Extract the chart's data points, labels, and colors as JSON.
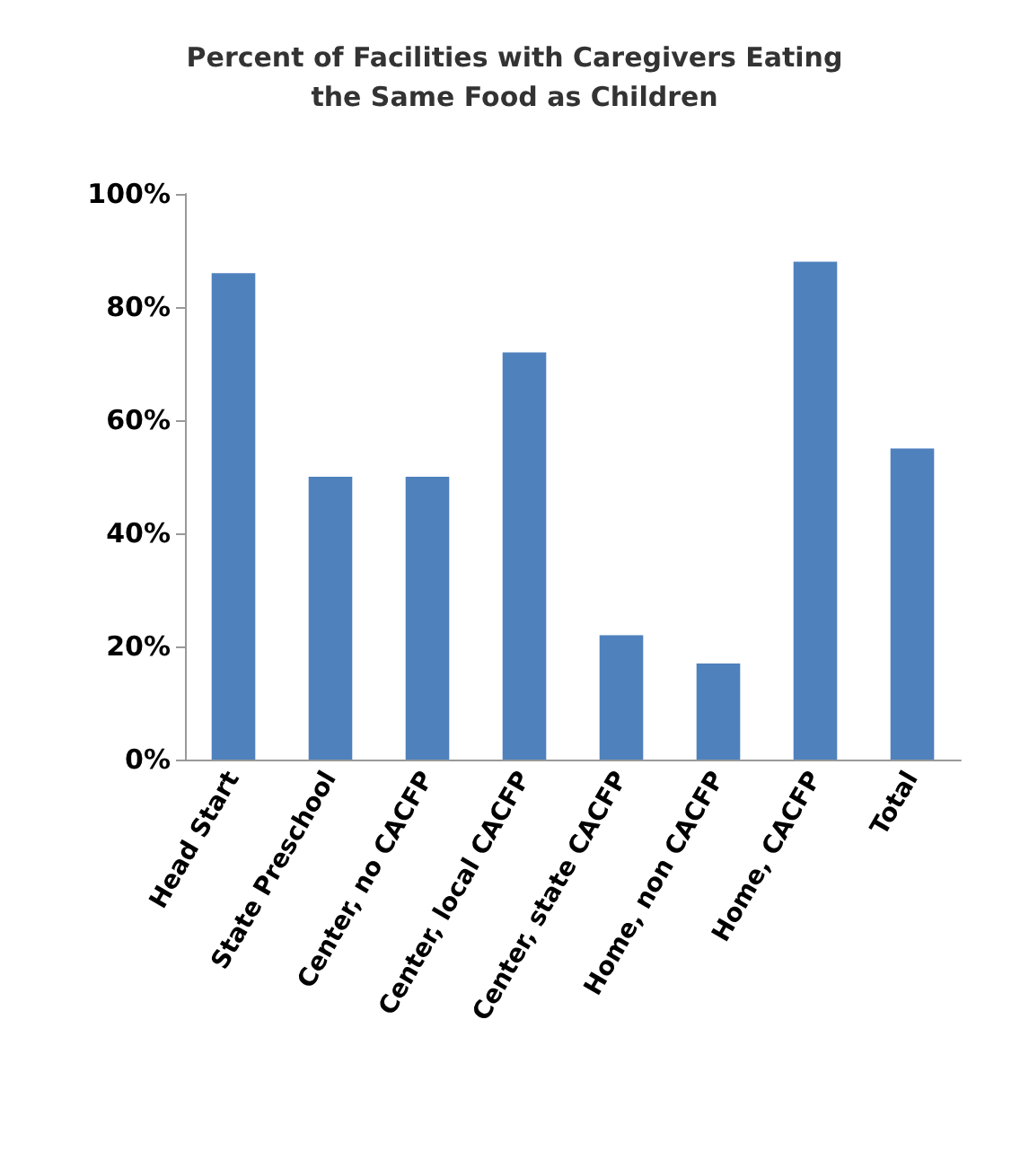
{
  "chart_data": {
    "type": "bar",
    "title": "Percent of Facilities with Caregivers Eating\nthe Same Food as Children",
    "categories": [
      "Head Start",
      "State Preschool",
      "Center, no CACFP",
      "Center, local CACFP",
      "Center, state CACFP",
      "Home, non CACFP",
      "Home, CACFP",
      "Total"
    ],
    "values": [
      86,
      50,
      50,
      72,
      22,
      17,
      88,
      55
    ],
    "color": "#4f81bd",
    "ylim": [
      0,
      100
    ],
    "yticks": [
      {
        "value": 0,
        "label": "0%"
      },
      {
        "value": 20,
        "label": "20%"
      },
      {
        "value": 40,
        "label": "40%"
      },
      {
        "value": 60,
        "label": "60%"
      },
      {
        "value": 80,
        "label": "80%"
      },
      {
        "value": 100,
        "label": "100%"
      }
    ],
    "grid": false
  }
}
